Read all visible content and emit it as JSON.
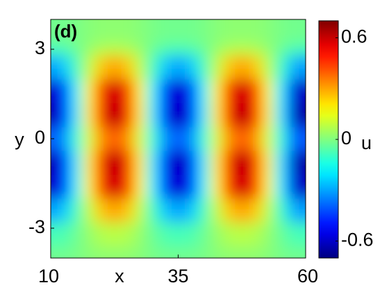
{
  "chart_data": {
    "type": "heatmap",
    "annotation": "(d)",
    "x_label": "x",
    "y_label": "y",
    "colorbar_label": "u",
    "colormap": "jet",
    "x": [
      10,
      12.5,
      15,
      17.5,
      20,
      22.5,
      25,
      27.5,
      30,
      32.5,
      35,
      37.5,
      40,
      42.5,
      45,
      47.5,
      50,
      52.5,
      55,
      57.5,
      60
    ],
    "y": [
      -4,
      -3.2,
      -2.4,
      -1.6,
      -0.8,
      0,
      0.8,
      1.6,
      2.4,
      3.2,
      4
    ],
    "z": [
      [
        -0.02,
        -0.02,
        -0.01,
        0.01,
        0.02,
        0.02,
        0.02,
        0.01,
        -0.01,
        -0.02,
        -0.02,
        -0.02,
        -0.01,
        0.01,
        0.02,
        0.02,
        0.02,
        0.01,
        -0.01,
        -0.02,
        -0.02
      ],
      [
        -0.08,
        -0.07,
        -0.03,
        0.03,
        0.07,
        0.08,
        0.07,
        0.03,
        -0.03,
        -0.07,
        -0.08,
        -0.07,
        -0.03,
        0.03,
        0.07,
        0.08,
        0.07,
        0.03,
        -0.03,
        -0.07,
        -0.08
      ],
      [
        -0.31,
        -0.25,
        -0.09,
        0.09,
        0.25,
        0.31,
        0.25,
        0.09,
        -0.09,
        -0.25,
        -0.31,
        -0.25,
        -0.09,
        0.09,
        0.25,
        0.31,
        0.25,
        0.09,
        -0.09,
        -0.25,
        -0.31
      ],
      [
        -0.61,
        -0.5,
        -0.19,
        0.19,
        0.5,
        0.61,
        0.5,
        0.19,
        -0.19,
        -0.5,
        -0.61,
        -0.5,
        -0.19,
        0.19,
        0.5,
        0.61,
        0.5,
        0.19,
        -0.19,
        -0.5,
        -0.61
      ],
      [
        -0.65,
        -0.52,
        -0.2,
        0.2,
        0.52,
        0.65,
        0.52,
        0.2,
        -0.2,
        -0.52,
        -0.65,
        -0.52,
        -0.2,
        0.2,
        0.52,
        0.65,
        0.52,
        0.2,
        -0.2,
        -0.52,
        -0.65
      ],
      [
        -0.41,
        -0.33,
        -0.13,
        0.13,
        0.33,
        0.41,
        0.33,
        0.13,
        -0.13,
        -0.33,
        -0.41,
        -0.33,
        -0.13,
        0.13,
        0.33,
        0.41,
        0.33,
        0.13,
        -0.13,
        -0.33,
        -0.41
      ],
      [
        -0.65,
        -0.52,
        -0.2,
        0.2,
        0.52,
        0.65,
        0.52,
        0.2,
        -0.2,
        -0.52,
        -0.65,
        -0.52,
        -0.2,
        0.2,
        0.52,
        0.65,
        0.52,
        0.2,
        -0.2,
        -0.52,
        -0.65
      ],
      [
        -0.61,
        -0.5,
        -0.19,
        0.19,
        0.5,
        0.61,
        0.5,
        0.19,
        -0.19,
        -0.5,
        -0.61,
        -0.5,
        -0.19,
        0.19,
        0.5,
        0.61,
        0.5,
        0.19,
        -0.19,
        -0.5,
        -0.61
      ],
      [
        -0.31,
        -0.25,
        -0.09,
        0.09,
        0.25,
        0.31,
        0.25,
        0.09,
        -0.09,
        -0.25,
        -0.31,
        -0.25,
        -0.09,
        0.09,
        0.25,
        0.31,
        0.25,
        0.09,
        -0.09,
        -0.25,
        -0.31
      ],
      [
        -0.08,
        -0.07,
        -0.03,
        0.03,
        0.07,
        0.08,
        0.07,
        0.03,
        -0.03,
        -0.07,
        -0.08,
        -0.07,
        -0.03,
        0.03,
        0.07,
        0.08,
        0.07,
        0.03,
        -0.03,
        -0.07,
        -0.08
      ],
      [
        -0.02,
        -0.02,
        -0.01,
        0.01,
        0.02,
        0.02,
        0.02,
        0.01,
        -0.01,
        -0.02,
        -0.02,
        -0.02,
        -0.01,
        0.01,
        0.02,
        0.02,
        0.02,
        0.01,
        -0.01,
        -0.02,
        -0.02
      ]
    ],
    "xlim": [
      10,
      60
    ],
    "ylim": [
      -4,
      4
    ],
    "zlim": [
      -0.7,
      0.7
    ],
    "xticks": [
      10,
      35,
      60
    ],
    "yticks": [
      -3,
      0,
      3
    ],
    "zticks": [
      -0.6,
      0,
      0.6
    ]
  }
}
